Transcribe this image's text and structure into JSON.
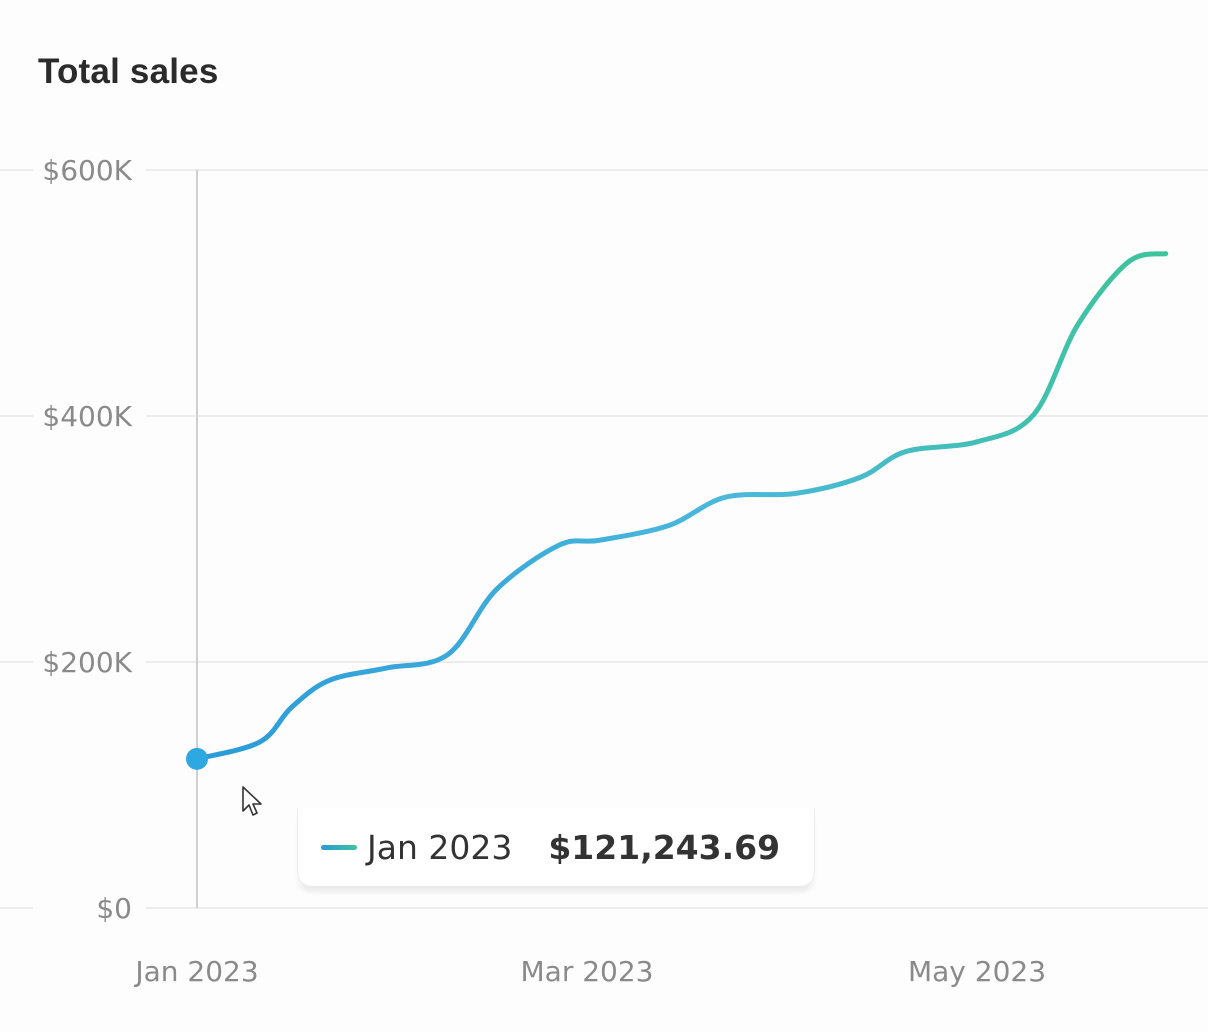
{
  "chart_data": {
    "type": "line",
    "title": "Total sales",
    "xlabel": "",
    "ylabel": "",
    "ylim": [
      0,
      600000
    ],
    "yticks": [
      0,
      200000,
      400000,
      600000
    ],
    "ytick_labels": [
      "$0",
      "$200K",
      "$400K",
      "$600K"
    ],
    "xticks": [
      "2023-01-01",
      "2023-03-01",
      "2023-05-01"
    ],
    "xtick_labels": [
      "Jan 2023",
      "Mar 2023",
      "May 2023"
    ],
    "xlim": [
      "2023-01-01",
      "2023-06-01"
    ],
    "grid": "horizontal",
    "series": [
      {
        "name": "Total sales",
        "color_start": "#2a9bd8",
        "color_end": "#3cc49a",
        "points": [
          {
            "x": "2023-01-01",
            "y": 121243.69
          },
          {
            "x": "2023-01-11",
            "y": 135000
          },
          {
            "x": "2023-01-16",
            "y": 163000
          },
          {
            "x": "2023-01-22",
            "y": 185000
          },
          {
            "x": "2023-01-31",
            "y": 195000
          },
          {
            "x": "2023-02-09",
            "y": 206000
          },
          {
            "x": "2023-02-16",
            "y": 259000
          },
          {
            "x": "2023-02-25",
            "y": 295000
          },
          {
            "x": "2023-03-03",
            "y": 299000
          },
          {
            "x": "2023-03-14",
            "y": 311000
          },
          {
            "x": "2023-03-23",
            "y": 334000
          },
          {
            "x": "2023-04-03",
            "y": 337000
          },
          {
            "x": "2023-04-13",
            "y": 350000
          },
          {
            "x": "2023-04-20",
            "y": 371000
          },
          {
            "x": "2023-05-01",
            "y": 379000
          },
          {
            "x": "2023-05-10",
            "y": 401000
          },
          {
            "x": "2023-05-17",
            "y": 474000
          },
          {
            "x": "2023-05-25",
            "y": 525000
          },
          {
            "x": "2023-05-31",
            "y": 532000
          }
        ]
      }
    ],
    "highlight": {
      "x": "2023-01-01",
      "label": "Jan 2023",
      "value": "$121,243.69"
    }
  },
  "tooltip": {
    "label": "Jan 2023",
    "value": "$121,243.69"
  }
}
